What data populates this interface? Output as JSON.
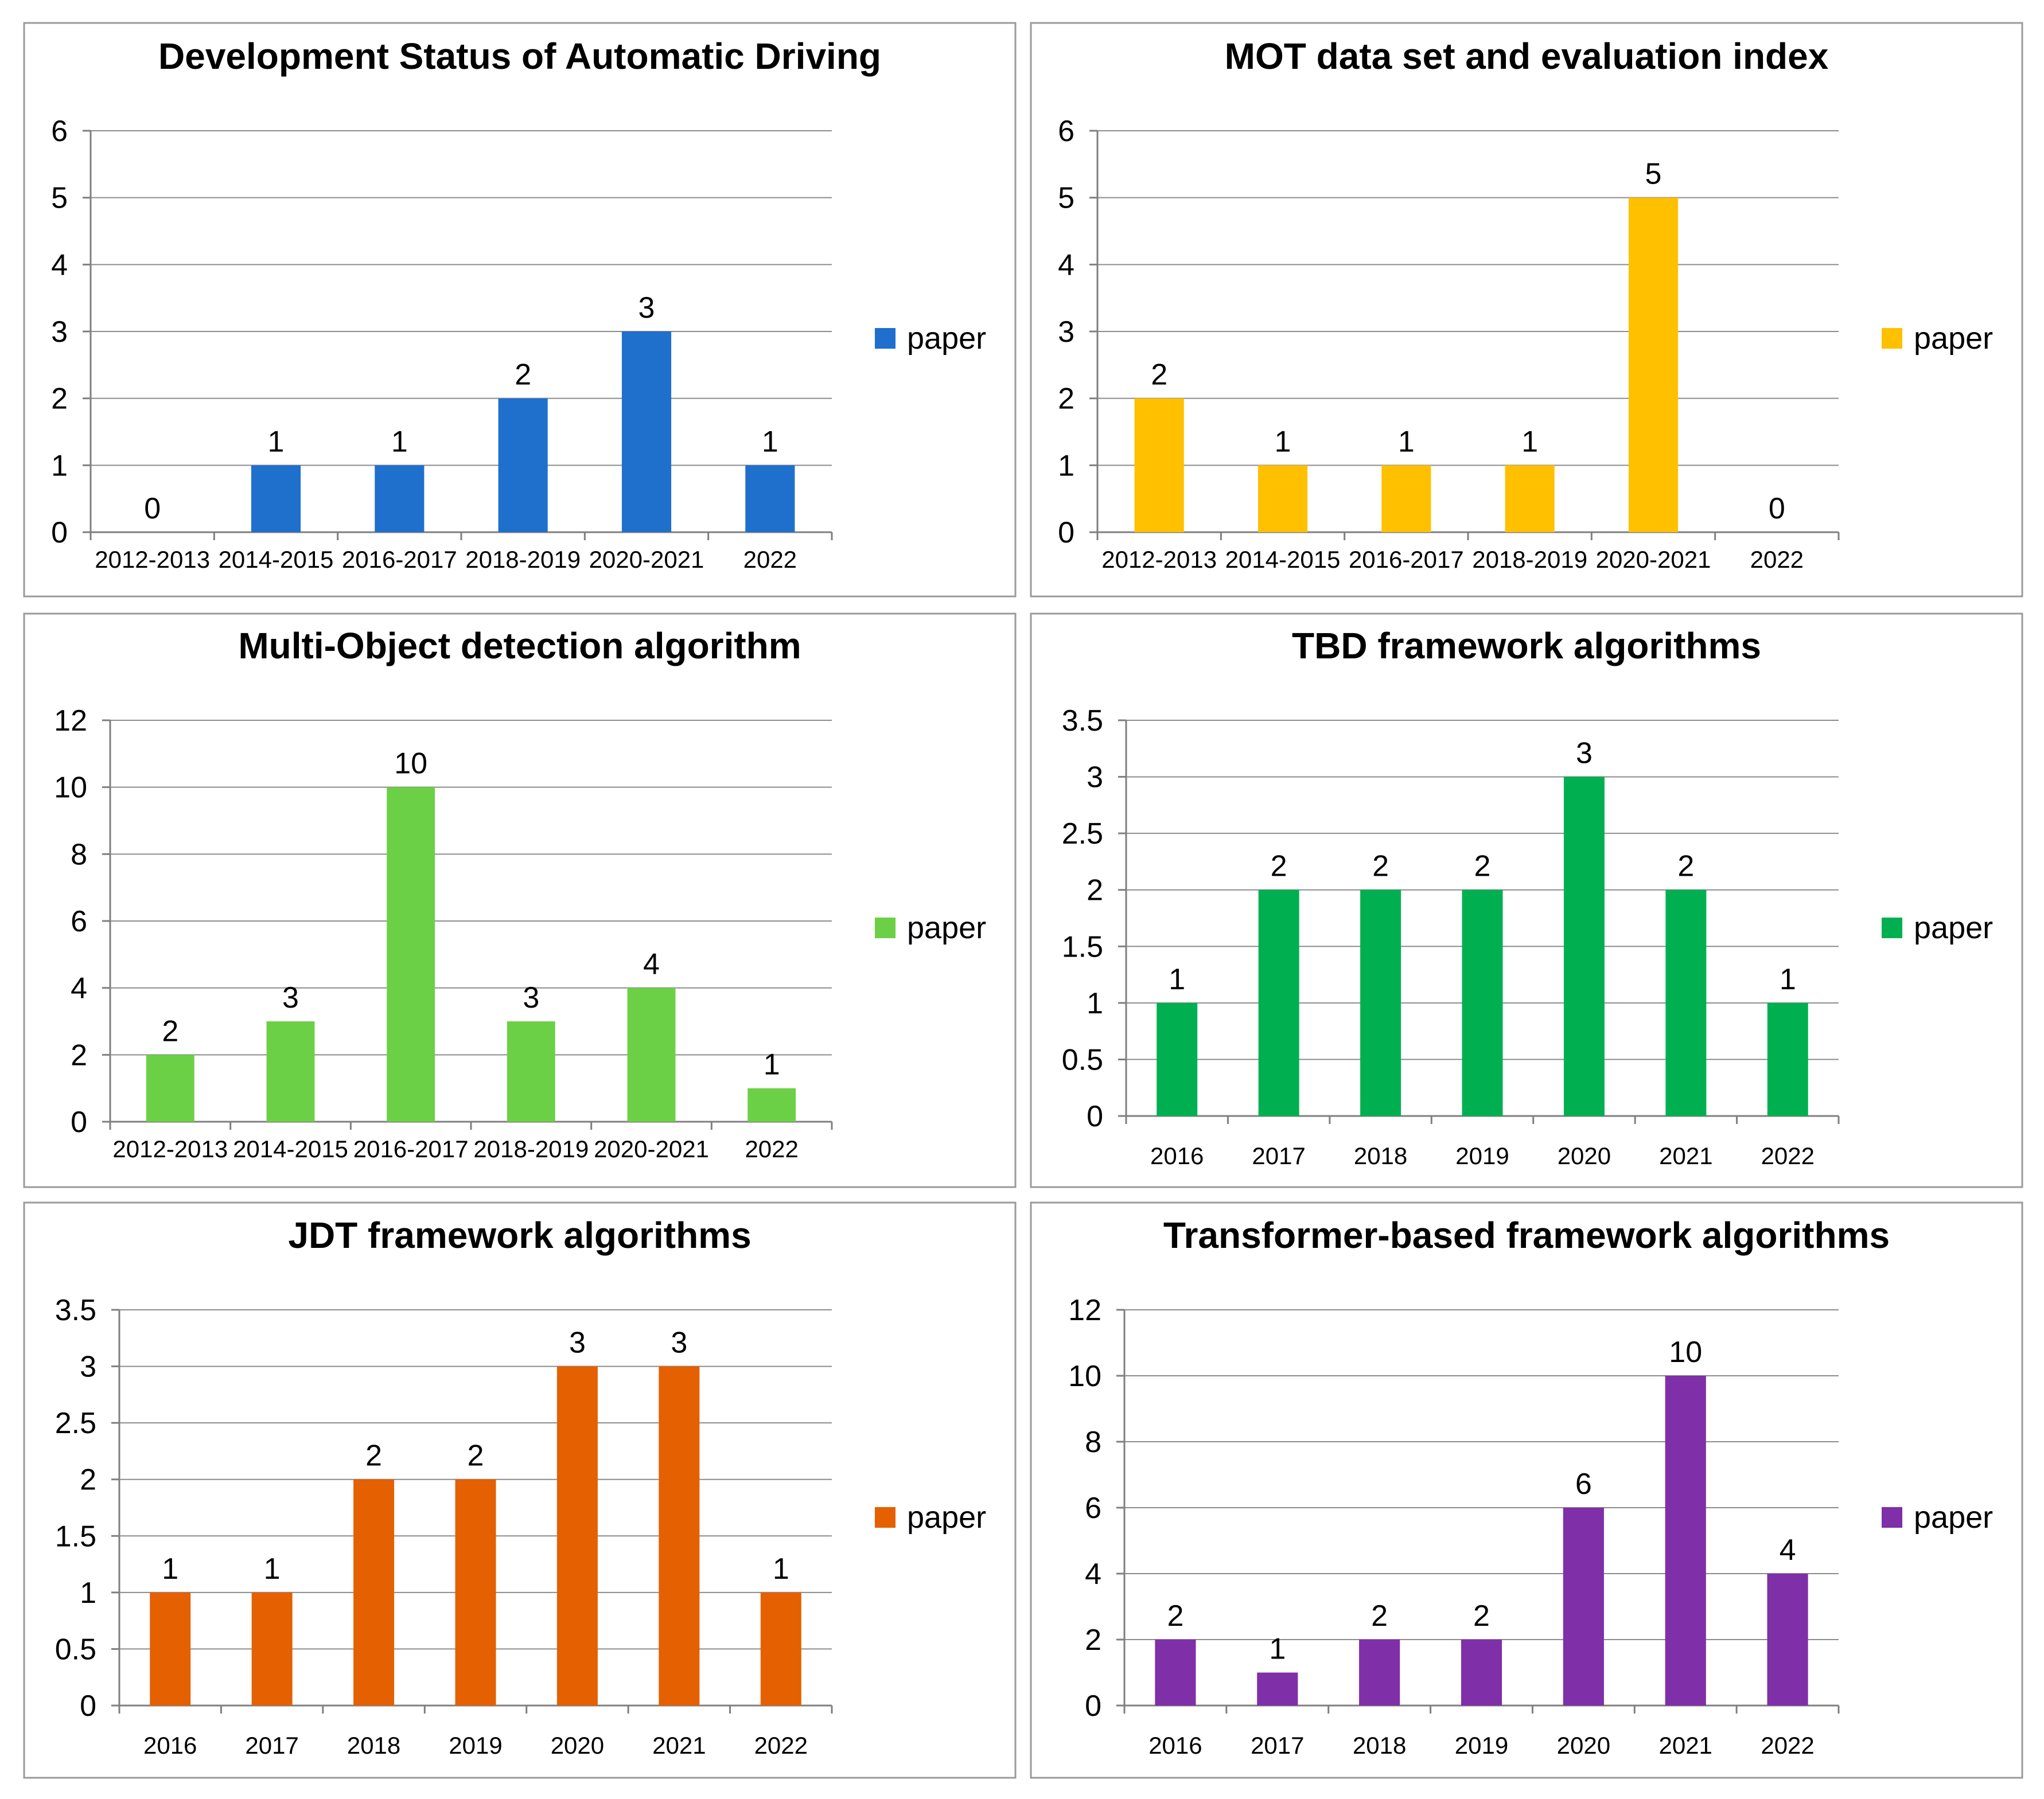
{
  "chart_data": [
    {
      "type": "bar",
      "title": "Development Status of Automatic Driving",
      "categories": [
        "2012-2013",
        "2014-2015",
        "2016-2017",
        "2018-2019",
        "2020-2021",
        "2022"
      ],
      "values": [
        0,
        1,
        1,
        2,
        3,
        1
      ],
      "series_name": "paper",
      "color": "#1f6fcd",
      "ylim": [
        0,
        6
      ],
      "yticks": [
        "0",
        "1",
        "2",
        "3",
        "4",
        "5",
        "6"
      ],
      "grid": true,
      "legend": "right"
    },
    {
      "type": "bar",
      "title": "MOT data set and evaluation index",
      "categories": [
        "2012-2013",
        "2014-2015",
        "2016-2017",
        "2018-2019",
        "2020-2021",
        "2022"
      ],
      "values": [
        2,
        1,
        1,
        1,
        5,
        0
      ],
      "series_name": "paper",
      "color": "#ffc000",
      "ylim": [
        0,
        6
      ],
      "yticks": [
        "0",
        "1",
        "2",
        "3",
        "4",
        "5",
        "6"
      ],
      "grid": true,
      "legend": "right"
    },
    {
      "type": "bar",
      "title": "Multi-Object detection algorithm",
      "categories": [
        "2012-2013",
        "2014-2015",
        "2016-2017",
        "2018-2019",
        "2020-2021",
        "2022"
      ],
      "values": [
        2,
        3,
        10,
        3,
        4,
        1
      ],
      "series_name": "paper",
      "color": "#6cd046",
      "ylim": [
        0,
        12
      ],
      "yticks": [
        "0",
        "2",
        "4",
        "6",
        "8",
        "10",
        "12"
      ],
      "grid": true,
      "legend": "right"
    },
    {
      "type": "bar",
      "title": "TBD framework algorithms",
      "categories": [
        "2016",
        "2017",
        "2018",
        "2019",
        "2020",
        "2021",
        "2022"
      ],
      "values": [
        1,
        2,
        2,
        2,
        3,
        2,
        1
      ],
      "series_name": "paper",
      "color": "#00b050",
      "ylim": [
        0,
        3.5
      ],
      "yticks": [
        "0",
        "0.5",
        "1",
        "1.5",
        "2",
        "2.5",
        "3",
        "3.5"
      ],
      "grid": true,
      "legend": "right"
    },
    {
      "type": "bar",
      "title": "JDT framework algorithms",
      "categories": [
        "2016",
        "2017",
        "2018",
        "2019",
        "2020",
        "2021",
        "2022"
      ],
      "values": [
        1,
        1,
        2,
        2,
        3,
        3,
        1
      ],
      "series_name": "paper",
      "color": "#e46000",
      "ylim": [
        0,
        3.5
      ],
      "yticks": [
        "0",
        "0.5",
        "1",
        "1.5",
        "2",
        "2.5",
        "3",
        "3.5"
      ],
      "grid": true,
      "legend": "right"
    },
    {
      "type": "bar",
      "title": "Transformer-based framework algorithms",
      "categories": [
        "2016",
        "2017",
        "2018",
        "2019",
        "2020",
        "2021",
        "2022"
      ],
      "values": [
        2,
        1,
        2,
        2,
        6,
        10,
        4
      ],
      "series_name": "paper",
      "color": "#7f2fa8",
      "ylim": [
        0,
        12
      ],
      "yticks": [
        "0",
        "2",
        "4",
        "6",
        "8",
        "10",
        "12"
      ],
      "grid": true,
      "legend": "right"
    }
  ]
}
